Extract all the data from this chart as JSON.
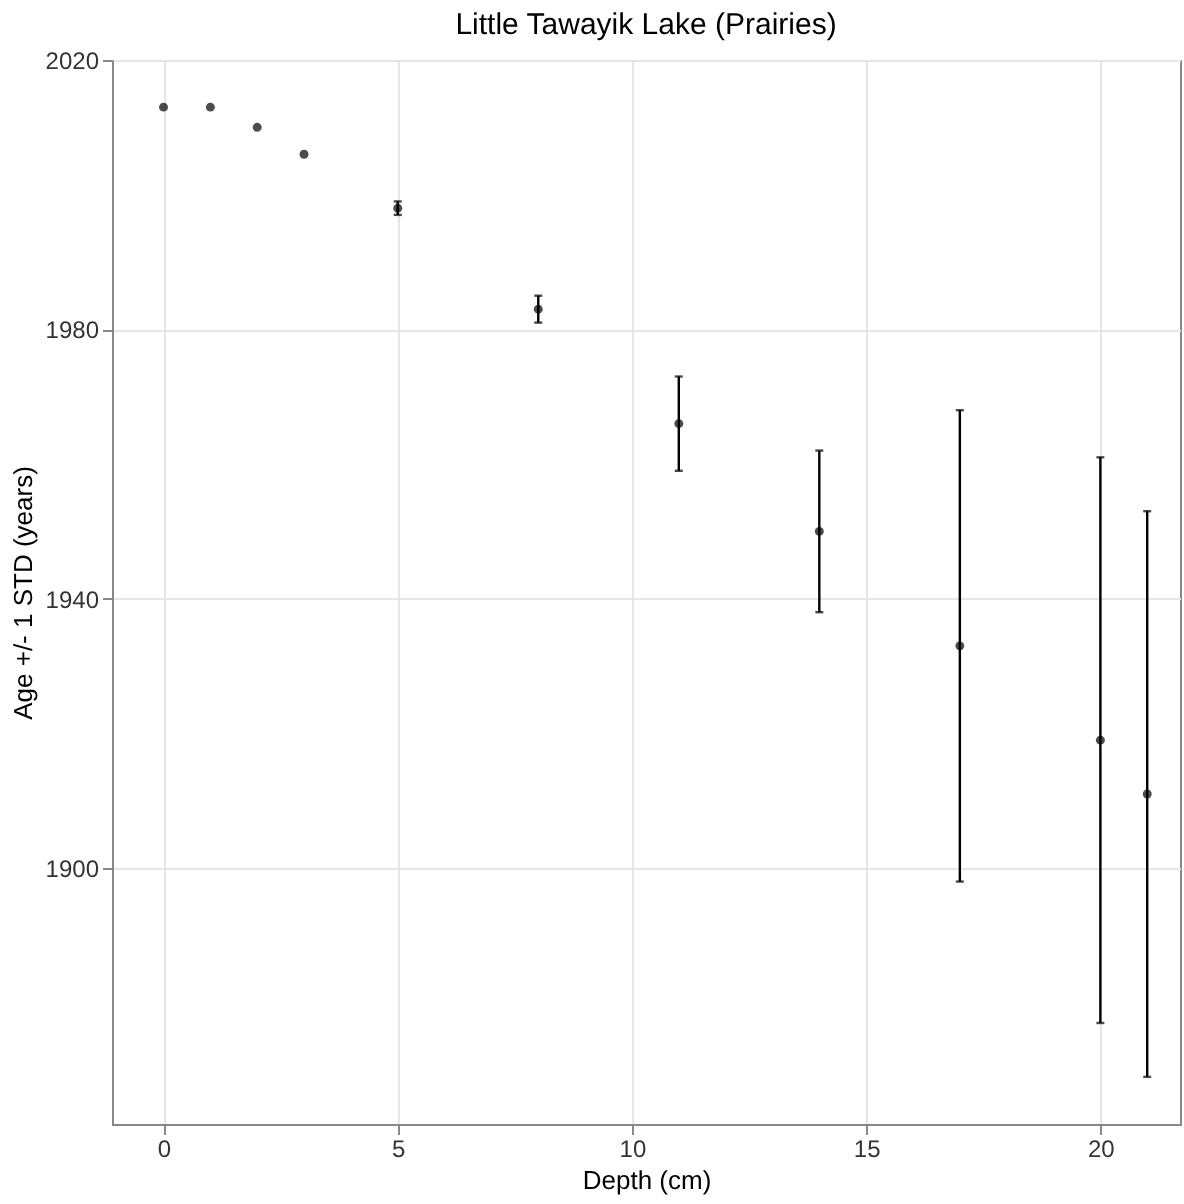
{
  "chart_data": {
    "type": "scatter",
    "title": "Little Tawayik Lake (Prairies)",
    "xlabel": "Depth (cm)",
    "ylabel": "Age +/- 1 STD (years)",
    "x": [
      0,
      1,
      2,
      3,
      5,
      8,
      11,
      14,
      17,
      20,
      21
    ],
    "values": [
      2013,
      2013,
      2010,
      2006,
      1998,
      1983,
      1966,
      1950,
      1933,
      1919,
      1911
    ],
    "errors": [
      null,
      null,
      null,
      null,
      1,
      2,
      7,
      12,
      35,
      42,
      42
    ],
    "color": "#000000",
    "marker": "circle",
    "xlim": [
      -1.1,
      21.7
    ],
    "xticks": [
      0,
      5,
      10,
      15,
      20
    ],
    "ylim": [
      1862,
      2020
    ],
    "yticks": [
      1900,
      1940,
      1980,
      2020
    ],
    "grid": true
  }
}
